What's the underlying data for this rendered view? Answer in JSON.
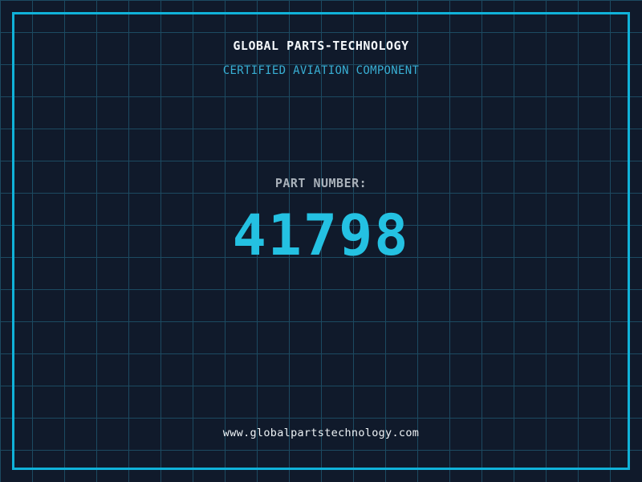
{
  "header": {
    "title": "GLOBAL PARTS-TECHNOLOGY",
    "subtitle": "CERTIFIED AVIATION COMPONENT"
  },
  "part": {
    "label": "PART NUMBER:",
    "number": "41798"
  },
  "footer": {
    "url": "www.globalpartstechnology.com"
  },
  "colors": {
    "background": "#101a2b",
    "grid_line": "#1c4a61",
    "frame_accent": "#10b2d9",
    "title_text": "#f4f7fa",
    "subtitle_text": "#38afd4",
    "label_text": "#a9b1ba",
    "part_number_text": "#24c1e2",
    "url_text": "#eef3f6"
  }
}
